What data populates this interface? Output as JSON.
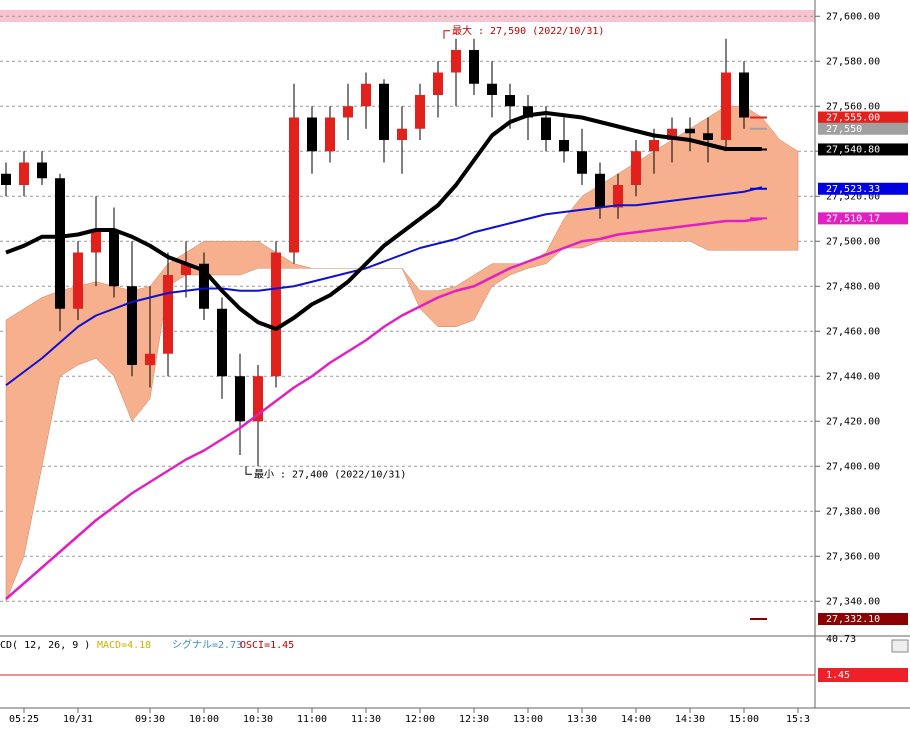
{
  "chart_data": {
    "type": "candlestick",
    "categories": [
      null,
      "05:25",
      null,
      null,
      "10/31",
      null,
      null,
      null,
      "09:30",
      null,
      null,
      "10:00",
      null,
      null,
      "10:30",
      null,
      null,
      "11:00",
      null,
      null,
      "11:30",
      null,
      null,
      "12:00",
      null,
      null,
      "12:30",
      null,
      null,
      "13:00",
      null,
      null,
      "13:30",
      null,
      null,
      "14:00",
      null,
      null,
      "14:30",
      null,
      null,
      "15:00",
      null,
      null,
      "15:3"
    ],
    "open": [
      27530,
      27525,
      27535,
      27528,
      27470,
      27495,
      27505,
      27480,
      27445,
      27450,
      27485,
      27490,
      27470,
      27440,
      27420,
      27440,
      27495,
      27555,
      27540,
      27555,
      27560,
      27570,
      27545,
      27550,
      27565,
      27575,
      27585,
      27570,
      27565,
      27560,
      27555,
      27545,
      27540,
      27530,
      27515,
      27525,
      27540,
      27545,
      27550,
      27548,
      27545,
      27575,
      null,
      null,
      null
    ],
    "high": [
      27535,
      27540,
      27540,
      27530,
      27500,
      27520,
      27515,
      27500,
      27480,
      27495,
      27500,
      27495,
      27475,
      27450,
      27445,
      27500,
      27570,
      27560,
      27560,
      27570,
      27575,
      27572,
      27560,
      27570,
      27580,
      27590,
      27590,
      27580,
      27570,
      27565,
      27560,
      27555,
      27550,
      27535,
      27530,
      27545,
      27550,
      27555,
      27555,
      27555,
      27590,
      27580,
      null,
      null,
      null
    ],
    "low": [
      27520,
      27520,
      27525,
      27460,
      27465,
      27480,
      27475,
      27440,
      27435,
      27440,
      27475,
      27465,
      27430,
      27405,
      27400,
      27435,
      27490,
      27530,
      27535,
      27545,
      27550,
      27535,
      27530,
      27545,
      27555,
      27560,
      27565,
      27555,
      27550,
      27545,
      27540,
      27535,
      27525,
      27510,
      27510,
      27520,
      27530,
      27535,
      27540,
      27535,
      27540,
      27550,
      null,
      null,
      null
    ],
    "close": [
      27525,
      27535,
      27528,
      27470,
      27495,
      27505,
      27480,
      27445,
      27450,
      27485,
      27490,
      27470,
      27440,
      27420,
      27440,
      27495,
      27555,
      27540,
      27555,
      27560,
      27570,
      27545,
      27550,
      27565,
      27575,
      27585,
      27570,
      27565,
      27560,
      27555,
      27545,
      27540,
      27530,
      27515,
      27525,
      27540,
      27545,
      27550,
      27548,
      27545,
      27575,
      27555,
      null,
      null,
      null
    ],
    "up_color": "#e3211c",
    "down_color": "#000000",
    "cloud": {
      "color": "#f7b08e",
      "upper": [
        27465,
        27470,
        27475,
        27478,
        27480,
        27482,
        27480,
        27478,
        27480,
        27490,
        27495,
        27500,
        27500,
        27500,
        27500,
        27495,
        27490,
        27488,
        27488,
        27488,
        27488,
        27488,
        27488,
        27478,
        27478,
        27480,
        27485,
        27490,
        27490,
        27490,
        27495,
        27510,
        27520,
        27525,
        27530,
        27535,
        27540,
        27545,
        27550,
        27555,
        27560,
        27560,
        27555,
        27545,
        27540
      ],
      "lower": [
        27340,
        27360,
        27400,
        27440,
        27445,
        27448,
        27440,
        27420,
        27430,
        27480,
        27485,
        27485,
        27485,
        27485,
        27488,
        27488,
        27488,
        27488,
        27488,
        27488,
        27488,
        27488,
        27488,
        27470,
        27462,
        27462,
        27465,
        27480,
        27485,
        27488,
        27490,
        27497,
        27497,
        27500,
        27500,
        27500,
        27500,
        27500,
        27500,
        27496,
        27496,
        27496,
        27496,
        27496,
        27496
      ]
    },
    "series": [
      {
        "color": "#1010d0",
        "width": 2,
        "values": [
          27436,
          27442,
          27448,
          27455,
          27462,
          27467,
          27470,
          27473,
          27475,
          27477,
          27478,
          27479,
          27479,
          27478,
          27478,
          27479,
          27480,
          27482,
          27484,
          27486,
          27488,
          27491,
          27494,
          27497,
          27499,
          27501,
          27504,
          27506,
          27508,
          27510,
          27512,
          27513,
          27514,
          27515,
          27516,
          27516,
          27517,
          27518,
          27519,
          27520,
          27521,
          27522,
          27524,
          null,
          null
        ]
      },
      {
        "color": "#e020c0",
        "width": 2.5,
        "values": [
          27341,
          27348,
          27355,
          27362,
          27369,
          27376,
          27382,
          27388,
          27393,
          27398,
          27403,
          27407,
          27412,
          27417,
          27423,
          27429,
          27435,
          27440,
          27446,
          27451,
          27456,
          27462,
          27467,
          27471,
          27475,
          27478,
          27480,
          27484,
          27488,
          27491,
          27494,
          27497,
          27500,
          27501,
          27503,
          27504,
          27505,
          27506,
          27507,
          27508,
          27509,
          27509,
          27510,
          null,
          null
        ]
      },
      {
        "color": "#000000",
        "width": 4,
        "values": [
          27495,
          27498,
          27502,
          27502,
          27503,
          27505,
          27505,
          27502,
          27498,
          27493,
          27490,
          27487,
          27478,
          27470,
          27464,
          27461,
          27466,
          27472,
          27476,
          27482,
          27490,
          27498,
          27504,
          27510,
          27516,
          27525,
          27536,
          27547,
          27553,
          27556,
          27557,
          27556,
          27555,
          27553,
          27551,
          27549,
          27547,
          27546,
          27545,
          27543,
          27541,
          27541,
          27541,
          null,
          null
        ]
      }
    ],
    "ylim": [
      27325,
      27605
    ],
    "yticks": [
      {
        "value": 27600,
        "label": "27,600.00"
      },
      {
        "value": 27580,
        "label": "27,580.00"
      },
      {
        "value": 27560,
        "label": "27,560.00"
      },
      {
        "value": 27540,
        "label": "27,540.00"
      },
      {
        "value": 27520,
        "label": "27,520.00"
      },
      {
        "value": 27500,
        "label": "27,500.00"
      },
      {
        "value": 27480,
        "label": "27,480.00"
      },
      {
        "value": 27460,
        "label": "27,460.00"
      },
      {
        "value": 27440,
        "label": "27,440.00"
      },
      {
        "value": 27420,
        "label": "27,420.00"
      },
      {
        "value": 27400,
        "label": "27,400.00"
      },
      {
        "value": 27380,
        "label": "27,380.00"
      },
      {
        "value": 27360,
        "label": "27,360.00"
      },
      {
        "value": 27340,
        "label": "27,340.00"
      }
    ],
    "grid": true,
    "annotations": [
      {
        "label": "最大 : 27,590 (2022/10/31)",
        "value": 27590,
        "color": "#c00000"
      },
      {
        "label": "最小 : 27,400 (2022/10/31)",
        "value": 27400,
        "color": "#000000"
      }
    ],
    "price_tags": [
      {
        "value": 27555,
        "label": "27,555.00",
        "color": "#e3211c"
      },
      {
        "value": 27550,
        "label": "27,550",
        "color": "#a0a0a0"
      },
      {
        "value": 27540.8,
        "label": "27,540.80",
        "color": "#000000"
      },
      {
        "value": 27523.33,
        "label": "27,523.33",
        "color": "#0000e0"
      },
      {
        "value": 27510.17,
        "label": "27,510.17",
        "color": "#e020c0"
      },
      {
        "value": 27332.1,
        "label": "27,332.10",
        "color": "#8b0000"
      }
    ],
    "macd_panel": {
      "title": "CD( 12, 26, 9 )",
      "macd": "MACD=4.18",
      "signal": "シグナル=2.73",
      "osci": "OSCI=1.45",
      "top_label": "40.73",
      "osci_tag": "1.45"
    }
  }
}
